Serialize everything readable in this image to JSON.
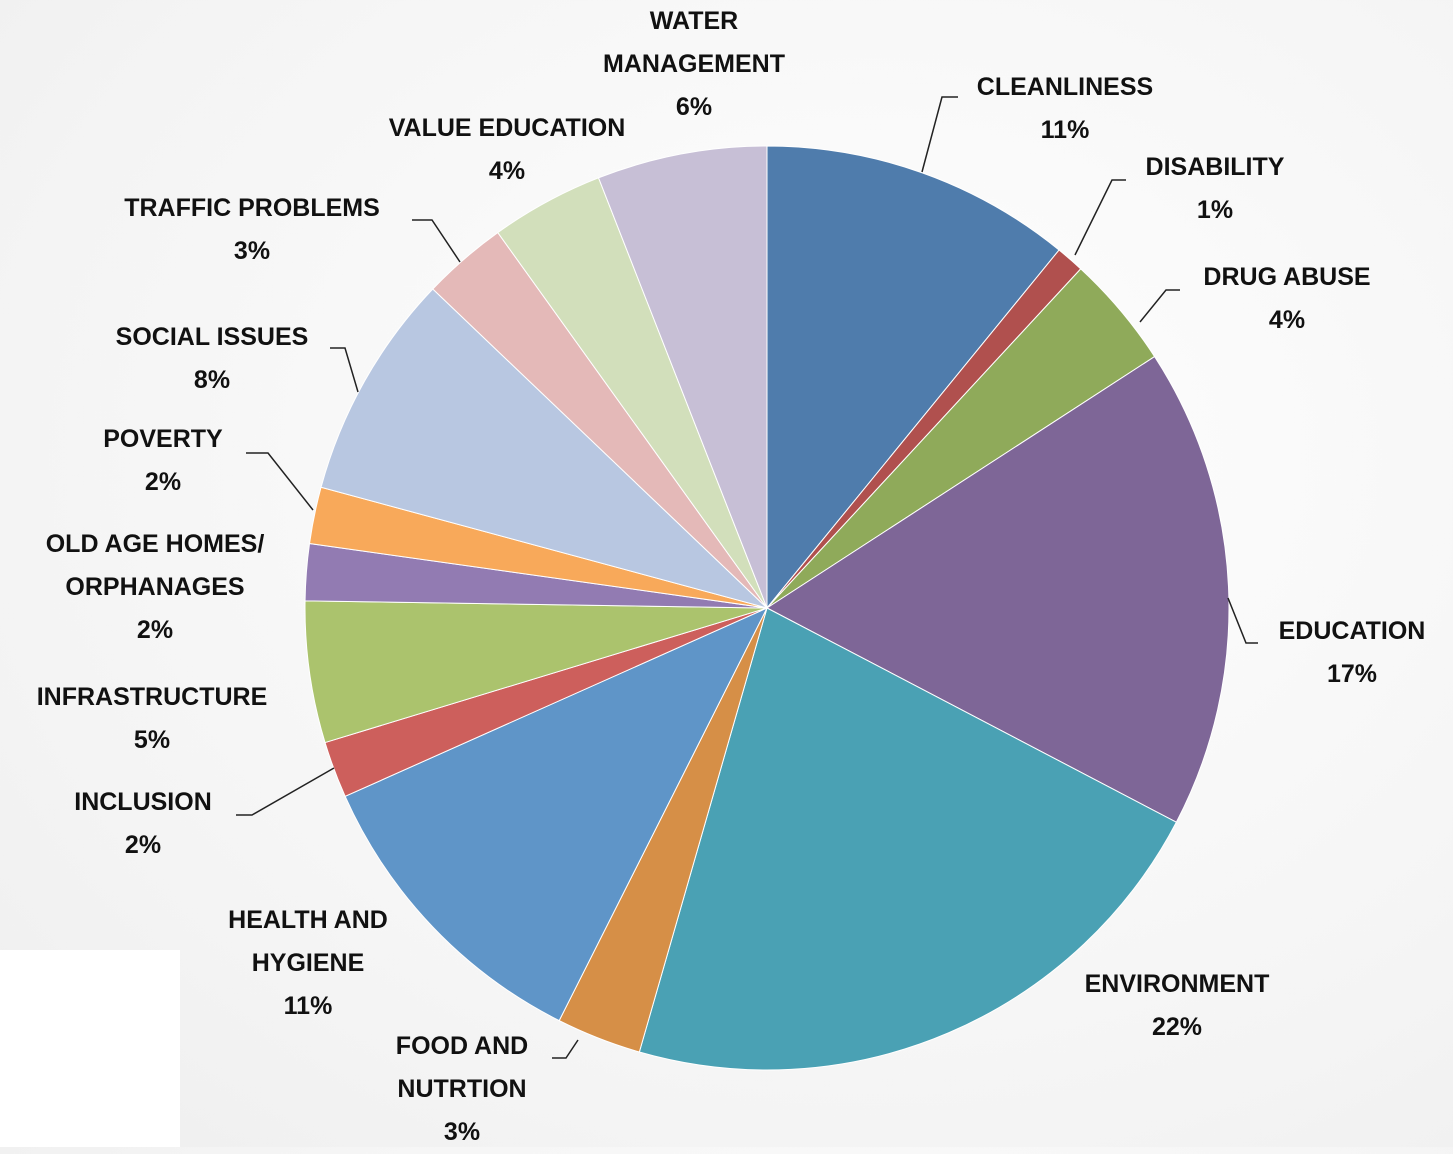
{
  "chart_data": {
    "type": "pie",
    "categories": [
      "CLEANLINESS",
      "DISABILITY",
      "DRUG ABUSE",
      "EDUCATION",
      "ENVIRONMENT",
      "FOOD AND NUTRTION",
      "HEALTH AND HYGIENE",
      "INCLUSION",
      "INFRASTRUCTURE",
      "OLD AGE HOMES/ ORPHANAGES",
      "POVERTY",
      "SOCIAL ISSUES",
      "TRAFFIC PROBLEMS",
      "VALUE EDUCATION",
      "WATER MANAGEMENT"
    ],
    "values": [
      11,
      1,
      4,
      17,
      22,
      3,
      11,
      2,
      5,
      2,
      2,
      8,
      3,
      4,
      6
    ],
    "value_labels": [
      "11%",
      "1%",
      "4%",
      "17%",
      "22%",
      "3%",
      "11%",
      "2%",
      "5%",
      "2%",
      "2%",
      "8%",
      "3%",
      "4%",
      "6%"
    ],
    "colors": [
      "#4f7cac",
      "#b0504e",
      "#8faa5a",
      "#7e6697",
      "#4aa1b4",
      "#d68f47",
      "#5f95c8",
      "#cd5f5c",
      "#abc36d",
      "#927bb2",
      "#f8a95a",
      "#b8c7e1",
      "#e4b9b8",
      "#d2dfbb",
      "#c7bfd6"
    ]
  }
}
